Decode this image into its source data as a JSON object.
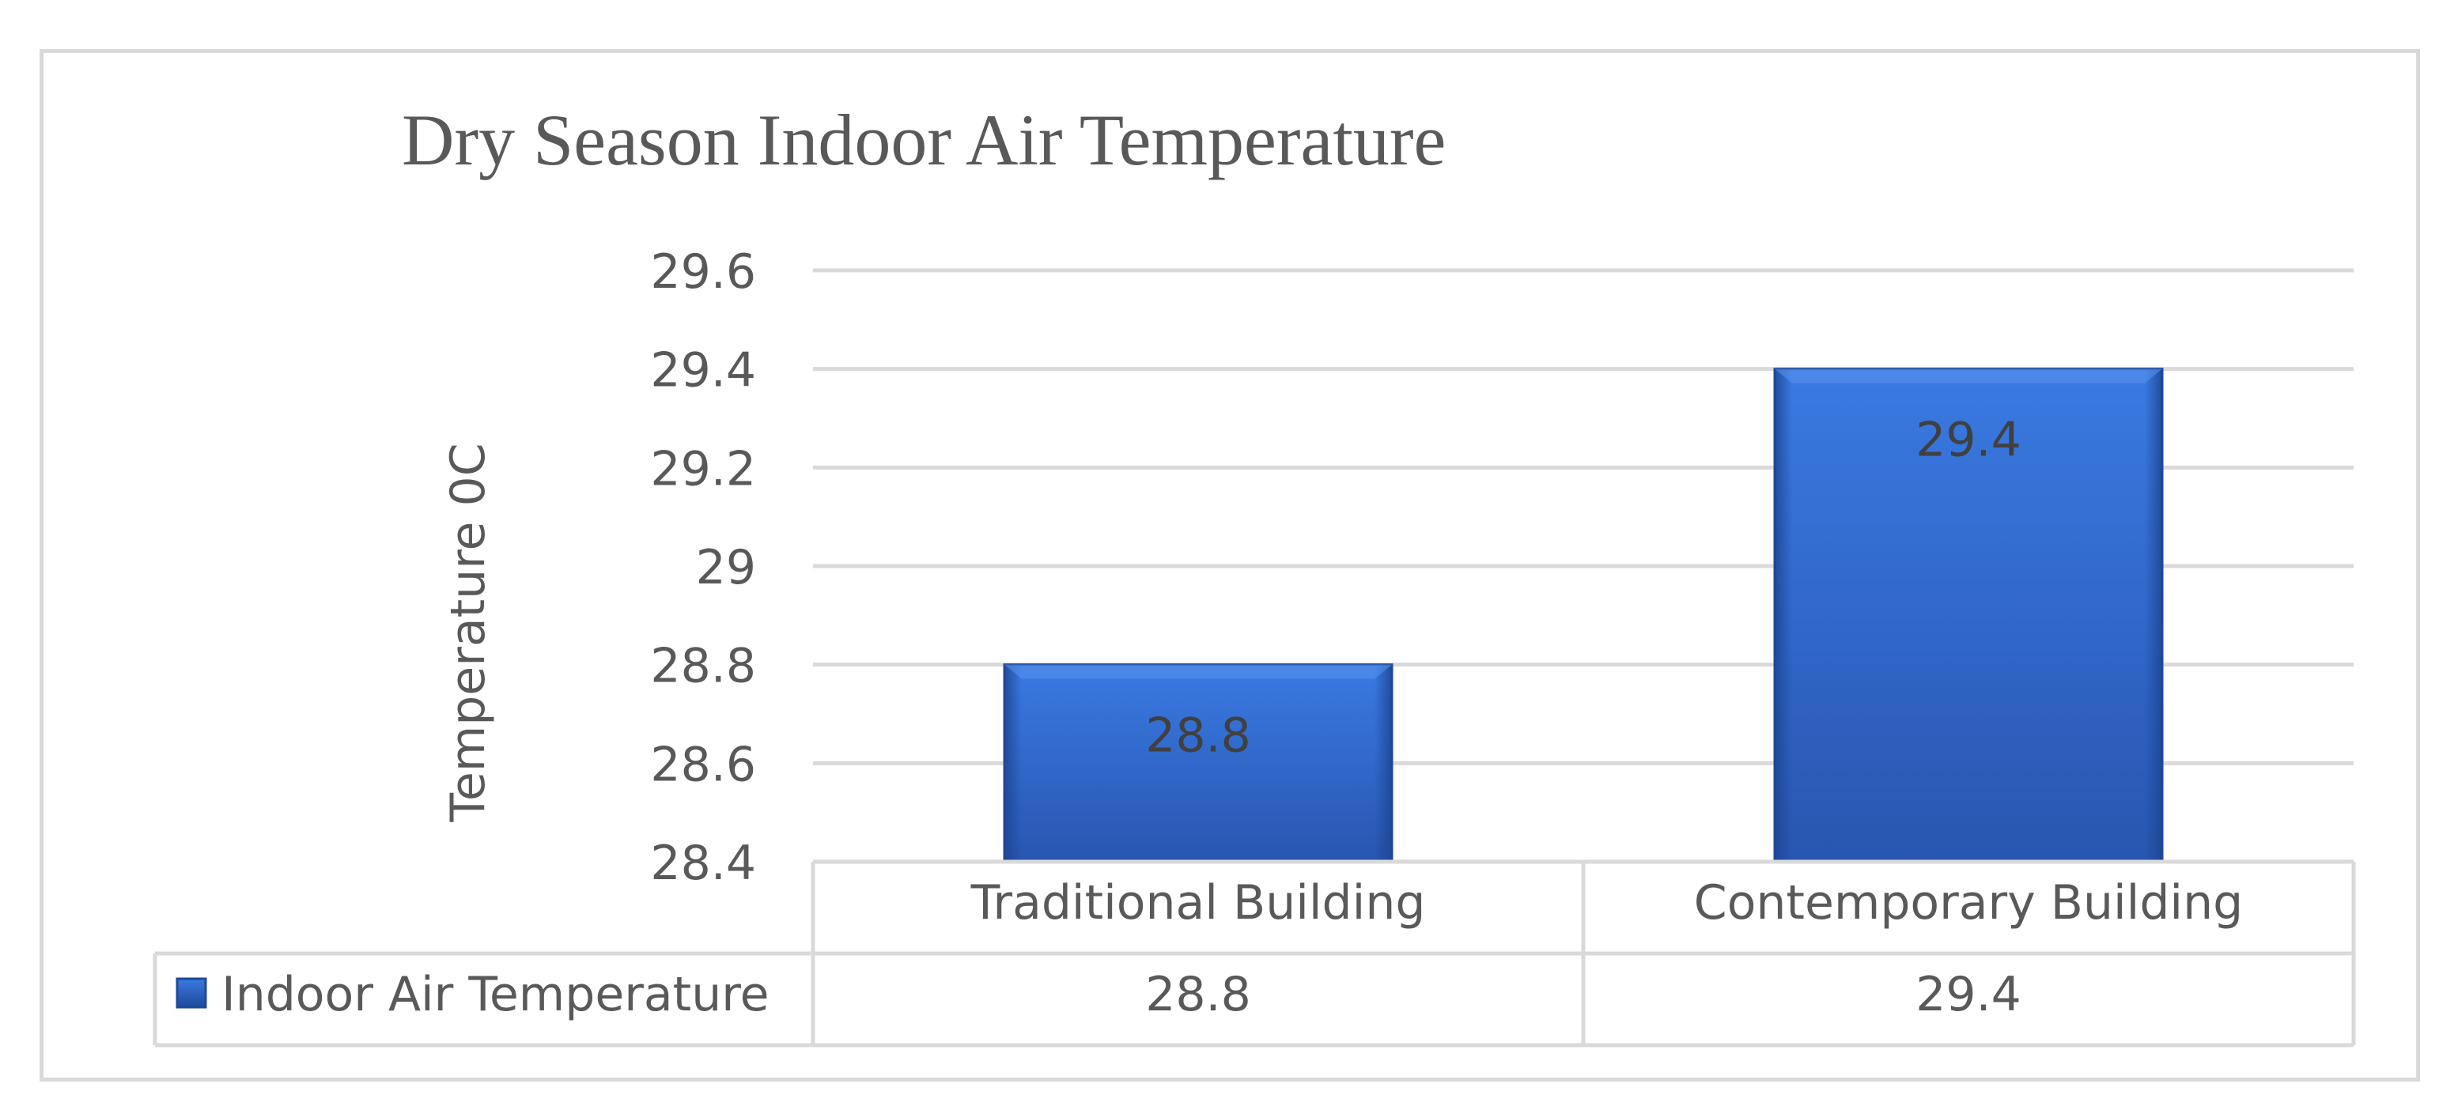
{
  "chart_data": {
    "type": "bar",
    "title": "Dry Season Indoor Air Temperature",
    "ylabel": "Temperature 0C",
    "xlabel": "",
    "categories": [
      "Traditional Building",
      "Contemporary Building"
    ],
    "series": [
      {
        "name": "Indoor Air Temperature",
        "values": [
          28.8,
          29.4
        ]
      }
    ],
    "ylim": [
      28.4,
      29.6
    ],
    "yticks": [
      "29.6",
      "29.4",
      "29.2",
      "29",
      "28.8",
      "28.6",
      "28.4"
    ],
    "data_labels": [
      "28.8",
      "29.4"
    ],
    "table_values": [
      "28.8",
      "29.4"
    ],
    "grid": true,
    "legend": "data-table",
    "colors": {
      "bar_top": "#3a78e0",
      "bar_bottom": "#2a5bb8",
      "bar_edge": "#1f4a9a",
      "grid": "#d9d9d9",
      "text": "#595959"
    }
  }
}
